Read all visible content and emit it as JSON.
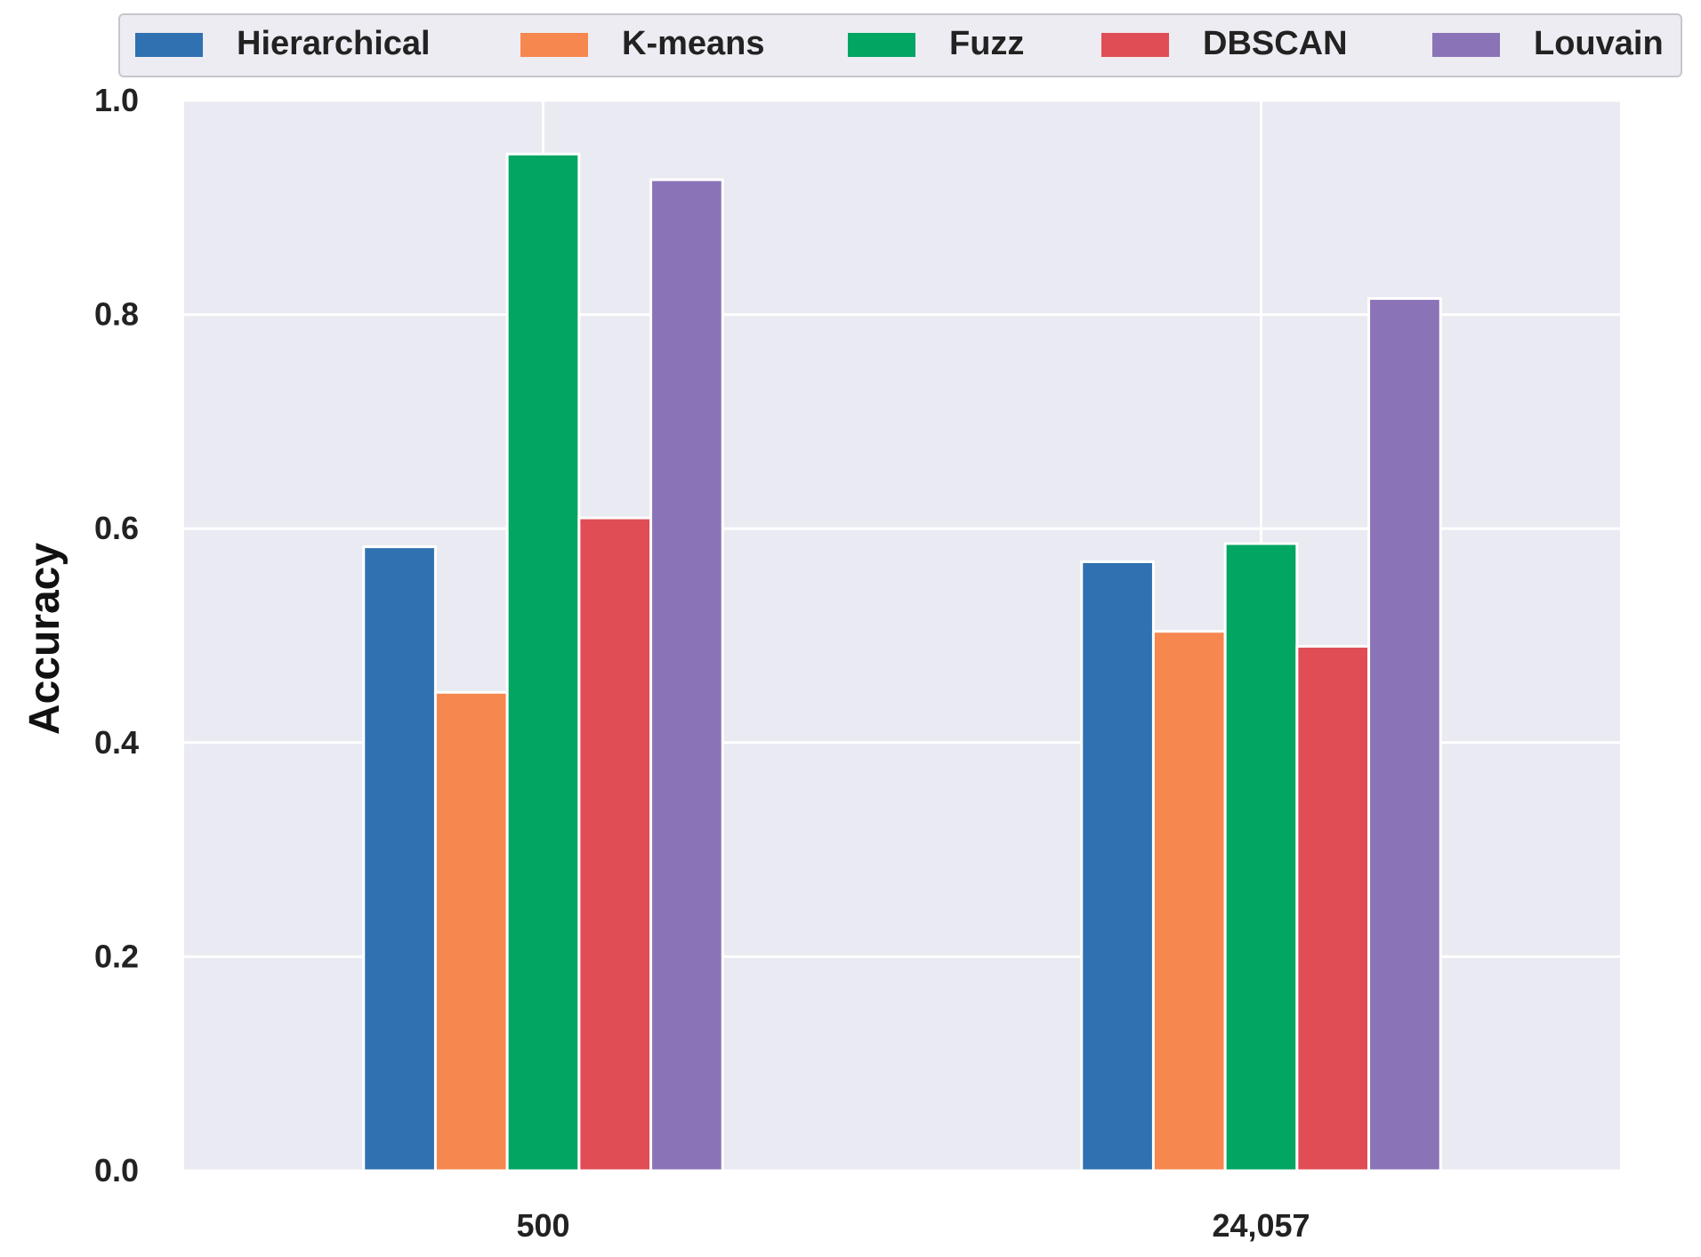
{
  "chart_data": {
    "type": "bar",
    "categories": [
      "500",
      "24,057"
    ],
    "series": [
      {
        "name": "Hierarchical",
        "color": "#3071b1",
        "values": [
          0.583,
          0.569
        ]
      },
      {
        "name": "K-means",
        "color": "#f6874f",
        "values": [
          0.447,
          0.504
        ]
      },
      {
        "name": "Fuzz",
        "color": "#00a661",
        "values": [
          0.95,
          0.586
        ]
      },
      {
        "name": "DBSCAN",
        "color": "#e04d54",
        "values": [
          0.61,
          0.49
        ]
      },
      {
        "name": "Louvain",
        "color": "#8a74b7",
        "values": [
          0.926,
          0.815
        ]
      }
    ],
    "xlabel": "",
    "ylabel": "Accuracy",
    "ylim": [
      0,
      1.0
    ],
    "yticks": [
      "0.0",
      "0.2",
      "0.4",
      "0.6",
      "0.8",
      "1.0"
    ],
    "grid": true,
    "legend_position": "top",
    "background_color": "#e9eaf2"
  }
}
